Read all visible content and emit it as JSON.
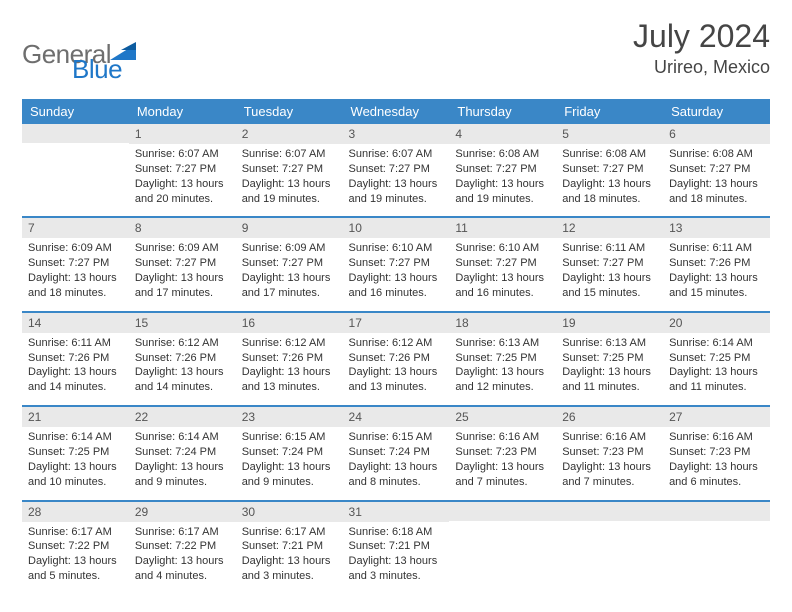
{
  "brand": {
    "word1": "General",
    "word2": "Blue"
  },
  "title": {
    "month": "July 2024",
    "location": "Urireo, Mexico"
  },
  "colors": {
    "header_bg": "#3a87c7",
    "header_text": "#ffffff",
    "daynum_bg": "#e9e9e9",
    "row_border": "#3a87c7",
    "body_text": "#333333",
    "title_text": "#454545",
    "logo_gray": "#6e6e6e",
    "logo_blue": "#1f77c8"
  },
  "weekdays": [
    "Sunday",
    "Monday",
    "Tuesday",
    "Wednesday",
    "Thursday",
    "Friday",
    "Saturday"
  ],
  "weeks": [
    [
      {
        "n": "",
        "sunrise": "",
        "sunset": "",
        "daylight": ""
      },
      {
        "n": "1",
        "sunrise": "Sunrise: 6:07 AM",
        "sunset": "Sunset: 7:27 PM",
        "daylight": "Daylight: 13 hours and 20 minutes."
      },
      {
        "n": "2",
        "sunrise": "Sunrise: 6:07 AM",
        "sunset": "Sunset: 7:27 PM",
        "daylight": "Daylight: 13 hours and 19 minutes."
      },
      {
        "n": "3",
        "sunrise": "Sunrise: 6:07 AM",
        "sunset": "Sunset: 7:27 PM",
        "daylight": "Daylight: 13 hours and 19 minutes."
      },
      {
        "n": "4",
        "sunrise": "Sunrise: 6:08 AM",
        "sunset": "Sunset: 7:27 PM",
        "daylight": "Daylight: 13 hours and 19 minutes."
      },
      {
        "n": "5",
        "sunrise": "Sunrise: 6:08 AM",
        "sunset": "Sunset: 7:27 PM",
        "daylight": "Daylight: 13 hours and 18 minutes."
      },
      {
        "n": "6",
        "sunrise": "Sunrise: 6:08 AM",
        "sunset": "Sunset: 7:27 PM",
        "daylight": "Daylight: 13 hours and 18 minutes."
      }
    ],
    [
      {
        "n": "7",
        "sunrise": "Sunrise: 6:09 AM",
        "sunset": "Sunset: 7:27 PM",
        "daylight": "Daylight: 13 hours and 18 minutes."
      },
      {
        "n": "8",
        "sunrise": "Sunrise: 6:09 AM",
        "sunset": "Sunset: 7:27 PM",
        "daylight": "Daylight: 13 hours and 17 minutes."
      },
      {
        "n": "9",
        "sunrise": "Sunrise: 6:09 AM",
        "sunset": "Sunset: 7:27 PM",
        "daylight": "Daylight: 13 hours and 17 minutes."
      },
      {
        "n": "10",
        "sunrise": "Sunrise: 6:10 AM",
        "sunset": "Sunset: 7:27 PM",
        "daylight": "Daylight: 13 hours and 16 minutes."
      },
      {
        "n": "11",
        "sunrise": "Sunrise: 6:10 AM",
        "sunset": "Sunset: 7:27 PM",
        "daylight": "Daylight: 13 hours and 16 minutes."
      },
      {
        "n": "12",
        "sunrise": "Sunrise: 6:11 AM",
        "sunset": "Sunset: 7:27 PM",
        "daylight": "Daylight: 13 hours and 15 minutes."
      },
      {
        "n": "13",
        "sunrise": "Sunrise: 6:11 AM",
        "sunset": "Sunset: 7:26 PM",
        "daylight": "Daylight: 13 hours and 15 minutes."
      }
    ],
    [
      {
        "n": "14",
        "sunrise": "Sunrise: 6:11 AM",
        "sunset": "Sunset: 7:26 PM",
        "daylight": "Daylight: 13 hours and 14 minutes."
      },
      {
        "n": "15",
        "sunrise": "Sunrise: 6:12 AM",
        "sunset": "Sunset: 7:26 PM",
        "daylight": "Daylight: 13 hours and 14 minutes."
      },
      {
        "n": "16",
        "sunrise": "Sunrise: 6:12 AM",
        "sunset": "Sunset: 7:26 PM",
        "daylight": "Daylight: 13 hours and 13 minutes."
      },
      {
        "n": "17",
        "sunrise": "Sunrise: 6:12 AM",
        "sunset": "Sunset: 7:26 PM",
        "daylight": "Daylight: 13 hours and 13 minutes."
      },
      {
        "n": "18",
        "sunrise": "Sunrise: 6:13 AM",
        "sunset": "Sunset: 7:25 PM",
        "daylight": "Daylight: 13 hours and 12 minutes."
      },
      {
        "n": "19",
        "sunrise": "Sunrise: 6:13 AM",
        "sunset": "Sunset: 7:25 PM",
        "daylight": "Daylight: 13 hours and 11 minutes."
      },
      {
        "n": "20",
        "sunrise": "Sunrise: 6:14 AM",
        "sunset": "Sunset: 7:25 PM",
        "daylight": "Daylight: 13 hours and 11 minutes."
      }
    ],
    [
      {
        "n": "21",
        "sunrise": "Sunrise: 6:14 AM",
        "sunset": "Sunset: 7:25 PM",
        "daylight": "Daylight: 13 hours and 10 minutes."
      },
      {
        "n": "22",
        "sunrise": "Sunrise: 6:14 AM",
        "sunset": "Sunset: 7:24 PM",
        "daylight": "Daylight: 13 hours and 9 minutes."
      },
      {
        "n": "23",
        "sunrise": "Sunrise: 6:15 AM",
        "sunset": "Sunset: 7:24 PM",
        "daylight": "Daylight: 13 hours and 9 minutes."
      },
      {
        "n": "24",
        "sunrise": "Sunrise: 6:15 AM",
        "sunset": "Sunset: 7:24 PM",
        "daylight": "Daylight: 13 hours and 8 minutes."
      },
      {
        "n": "25",
        "sunrise": "Sunrise: 6:16 AM",
        "sunset": "Sunset: 7:23 PM",
        "daylight": "Daylight: 13 hours and 7 minutes."
      },
      {
        "n": "26",
        "sunrise": "Sunrise: 6:16 AM",
        "sunset": "Sunset: 7:23 PM",
        "daylight": "Daylight: 13 hours and 7 minutes."
      },
      {
        "n": "27",
        "sunrise": "Sunrise: 6:16 AM",
        "sunset": "Sunset: 7:23 PM",
        "daylight": "Daylight: 13 hours and 6 minutes."
      }
    ],
    [
      {
        "n": "28",
        "sunrise": "Sunrise: 6:17 AM",
        "sunset": "Sunset: 7:22 PM",
        "daylight": "Daylight: 13 hours and 5 minutes."
      },
      {
        "n": "29",
        "sunrise": "Sunrise: 6:17 AM",
        "sunset": "Sunset: 7:22 PM",
        "daylight": "Daylight: 13 hours and 4 minutes."
      },
      {
        "n": "30",
        "sunrise": "Sunrise: 6:17 AM",
        "sunset": "Sunset: 7:21 PM",
        "daylight": "Daylight: 13 hours and 3 minutes."
      },
      {
        "n": "31",
        "sunrise": "Sunrise: 6:18 AM",
        "sunset": "Sunset: 7:21 PM",
        "daylight": "Daylight: 13 hours and 3 minutes."
      },
      {
        "n": "",
        "sunrise": "",
        "sunset": "",
        "daylight": ""
      },
      {
        "n": "",
        "sunrise": "",
        "sunset": "",
        "daylight": ""
      },
      {
        "n": "",
        "sunrise": "",
        "sunset": "",
        "daylight": ""
      }
    ]
  ]
}
